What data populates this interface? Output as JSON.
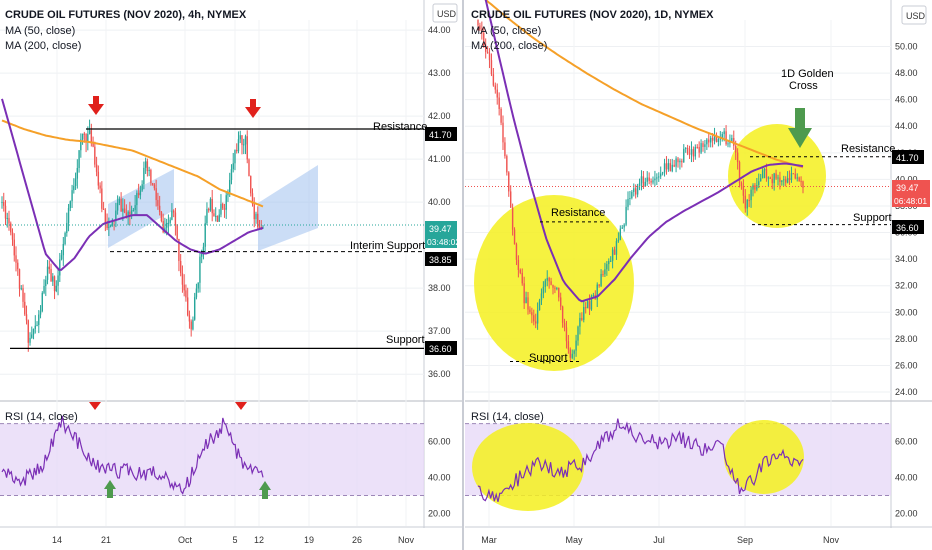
{
  "colors": {
    "ma50": "#7b2fb5",
    "ma200": "#f5a028",
    "up": "#26a69a",
    "down": "#ef5350",
    "rsi_line": "#7b2fb5",
    "rsi_band": "#e6d7f7",
    "highlight": "#f5f01e",
    "channel": "#a9c7f0",
    "arrow_red": "#e0201b",
    "arrow_green": "#4e9a4e",
    "price_tag": "#26a69a"
  },
  "left": {
    "header": {
      "title": "CRUDE OIL FUTURES (NOV 2020), 4h, NYMEX",
      "ma50": "MA (50, close)",
      "ma200": "MA (200, close)",
      "currency": "USD"
    },
    "rsi_label": "RSI (14, close)",
    "annotations": {
      "resistance": "Resistance",
      "interim_support": "Interim Support",
      "support": "Support"
    },
    "price_tags": {
      "resistance": "41.70",
      "current": "39.47",
      "countdown": "03:48:02",
      "interim": "38.85",
      "support": "36.60"
    },
    "icons": [
      "arrow-down-red-icon",
      "arrow-down-red-icon",
      "arrow-up-green-icon",
      "arrow-up-green-icon",
      "triangle-down-red-icon",
      "triangle-down-red-icon"
    ]
  },
  "right": {
    "header": {
      "title": "CRUDE OIL FUTURES (NOV 2020), 1D, NYMEX",
      "ma50": "MA (50, close)",
      "ma200": "MA (200, close)",
      "currency": "USD"
    },
    "rsi_label": "RSI (14, close)",
    "annotations": {
      "golden_cross_l1": "1D Golden",
      "golden_cross_l2": "Cross",
      "resistance_top": "Resistance",
      "resistance_low": "Resistance",
      "support_right": "Support",
      "support_low": "Support"
    },
    "price_tags": {
      "resistance": "41.70",
      "current": "39.47",
      "countdown": "06:48:01",
      "support": "36.60"
    },
    "icons": [
      "arrow-down-green-icon"
    ]
  },
  "chart_data": [
    {
      "type": "line",
      "title": "CRUDE OIL FUTURES (NOV 2020), 4h, NYMEX",
      "x_ticks": [
        "14",
        "21",
        "Oct",
        "5",
        "12",
        "19",
        "26",
        "Nov"
      ],
      "y_ticks": [
        36.0,
        37.0,
        38.0,
        39.0,
        40.0,
        41.0,
        42.0,
        43.0,
        44.0
      ],
      "ylim": [
        35.4,
        44.7
      ],
      "series": [
        {
          "name": "MA (50, close)",
          "x": [
            "14",
            "21",
            "Oct",
            "5",
            "12"
          ],
          "values": [
            40.3,
            38.6,
            39.7,
            38.8,
            39.4
          ]
        },
        {
          "name": "MA (200, close)",
          "x": [
            "14",
            "21",
            "Oct",
            "5",
            "12"
          ],
          "values": [
            41.4,
            41.1,
            40.9,
            40.4,
            39.9
          ]
        }
      ],
      "levels": {
        "resistance": 41.7,
        "interim_support": 38.85,
        "support": 36.6,
        "last": 39.47
      },
      "rsi": {
        "y_ticks": [
          20.0,
          40.0,
          60.0
        ],
        "band": [
          30,
          70
        ],
        "ylim": [
          13,
          82
        ],
        "approx_values": [
          44,
          38,
          46,
          71,
          56,
          43,
          44,
          42,
          43,
          30,
          56,
          69,
          47,
          40
        ]
      }
    },
    {
      "type": "line",
      "title": "CRUDE OIL FUTURES (NOV 2020), 1D, NYMEX",
      "x_ticks": [
        "Mar",
        "May",
        "Jul",
        "Sep",
        "Nov"
      ],
      "y_ticks": [
        24.0,
        26.0,
        28.0,
        30.0,
        32.0,
        34.0,
        36.0,
        38.0,
        40.0,
        42.0,
        44.0,
        46.0,
        48.0,
        50.0
      ],
      "ylim": [
        23.4,
        53.5
      ],
      "series": [
        {
          "name": "MA (50, close)",
          "x": [
            "Mar",
            "May",
            "Jul",
            "Sep"
          ],
          "values": [
            49.0,
            30.6,
            36.4,
            41.3
          ]
        },
        {
          "name": "MA (200, close)",
          "x": [
            "Mar",
            "May",
            "Jul",
            "Sep"
          ],
          "values": [
            53.0,
            48.7,
            45.3,
            41.2
          ]
        }
      ],
      "levels": {
        "resistance": 41.7,
        "support": 36.6,
        "low_resistance": 36.8,
        "low_support": 26.3,
        "last": 39.47
      },
      "rsi": {
        "y_ticks": [
          20.0,
          40.0,
          60.0
        ],
        "band": [
          30,
          70
        ],
        "ylim": [
          13,
          82
        ],
        "approx_values": [
          32,
          27,
          40,
          47,
          44,
          46,
          58,
          70,
          62,
          58,
          62,
          56,
          58,
          31,
          47,
          52,
          47
        ]
      }
    }
  ]
}
